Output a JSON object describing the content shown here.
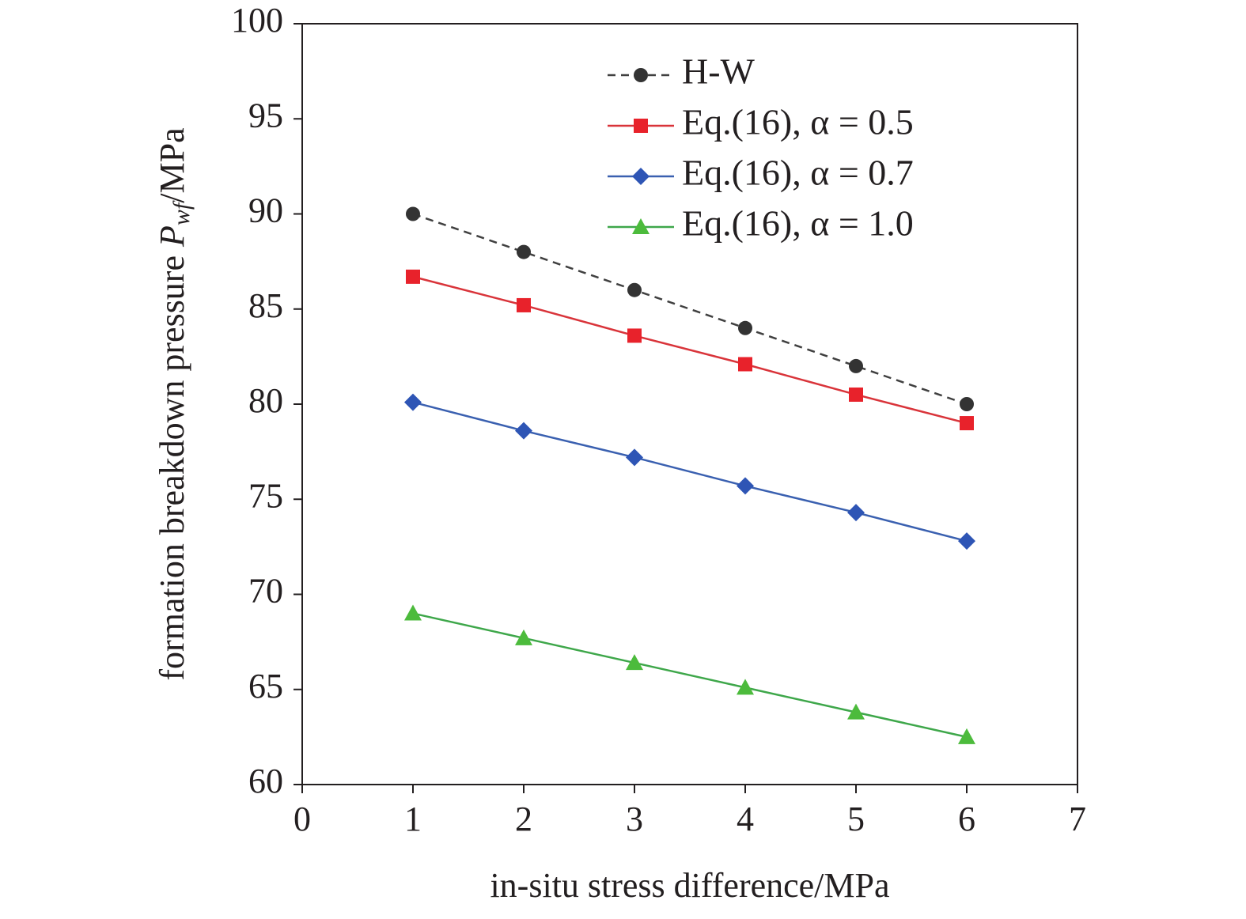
{
  "chart_data": {
    "type": "line",
    "xlabel": "in-situ stress difference/MPa",
    "ylabel": [
      "formation breakdown pressure ",
      "P",
      "wf",
      "/MPa"
    ],
    "x": [
      1,
      2,
      3,
      4,
      5,
      6
    ],
    "series": [
      {
        "name": "H-W",
        "color": "#404040",
        "dash": true,
        "marker": "circle",
        "marker_color": "#333333",
        "values": [
          90,
          88,
          86,
          84,
          82,
          80
        ]
      },
      {
        "name": "Eq.(16), α = 0.5",
        "color": "#d9343a",
        "dash": false,
        "marker": "square",
        "marker_color": "#e8222b",
        "values": [
          86.7,
          85.2,
          83.6,
          82.1,
          80.5,
          79.0
        ]
      },
      {
        "name": "Eq.(16), α = 0.7",
        "color": "#3a60b0",
        "dash": false,
        "marker": "diamond",
        "marker_color": "#2e55b5",
        "values": [
          80.1,
          78.6,
          77.2,
          75.7,
          74.3,
          72.8
        ]
      },
      {
        "name": "Eq.(16), α = 1.0",
        "color": "#3ea74a",
        "dash": false,
        "marker": "triangle",
        "marker_color": "#4cbb3c",
        "values": [
          69.0,
          67.7,
          66.4,
          65.1,
          63.8,
          62.5
        ]
      }
    ],
    "xlim": [
      0,
      7
    ],
    "xticks": [
      0,
      1,
      2,
      3,
      4,
      5,
      6,
      7
    ],
    "ylim": [
      60,
      100
    ],
    "yticks": [
      60,
      65,
      70,
      75,
      80,
      85,
      90,
      95,
      100
    ],
    "legend": "upper right"
  }
}
